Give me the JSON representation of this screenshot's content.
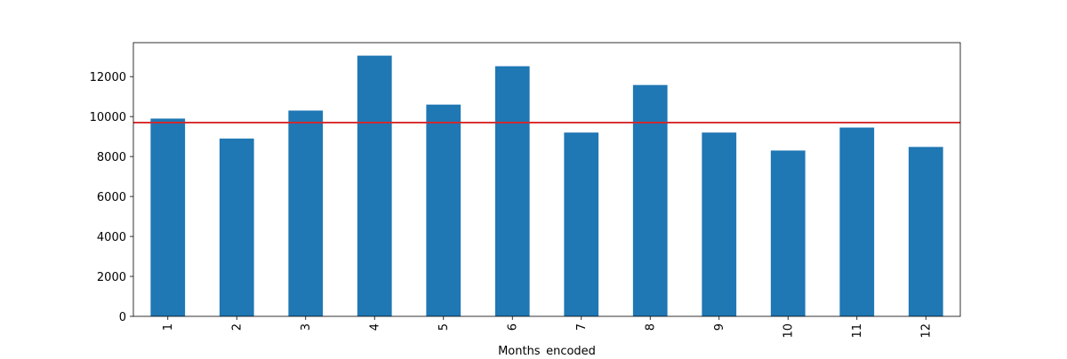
{
  "chart_data": {
    "type": "bar",
    "title": "",
    "xlabel": "Months_encoded",
    "ylabel": "",
    "categories": [
      "1",
      "2",
      "3",
      "4",
      "5",
      "6",
      "7",
      "8",
      "9",
      "10",
      "11",
      "12"
    ],
    "values": [
      9900,
      8900,
      10300,
      13050,
      10600,
      12520,
      9200,
      11580,
      9200,
      8300,
      9450,
      8480
    ],
    "ylim": [
      0,
      13700
    ],
    "yticks": [
      0,
      2000,
      4000,
      6000,
      8000,
      10000,
      12000
    ],
    "ytick_labels": [
      "0",
      "2000",
      "4000",
      "6000",
      "8000",
      "10000",
      "12000"
    ],
    "reference_line": {
      "value": 9700,
      "color": "#d62728"
    },
    "bar_color": "#1f77b4",
    "grid": false,
    "legend": "none"
  }
}
